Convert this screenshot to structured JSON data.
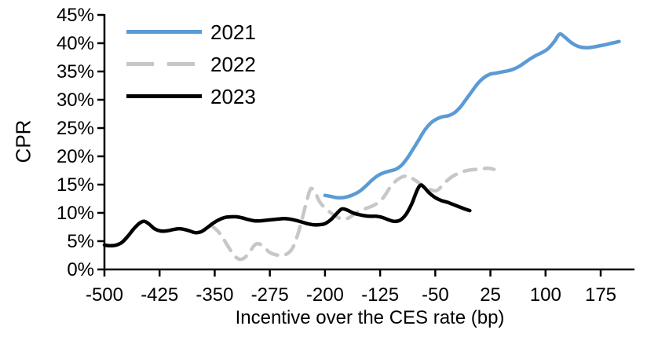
{
  "chart_data": {
    "type": "line",
    "title": "",
    "xlabel": "Incentive over the CES rate (bp)",
    "ylabel": "CPR",
    "grid": false,
    "legend_position": "top-left-inside",
    "xlim": [
      -500,
      221
    ],
    "ylim": [
      0,
      45
    ],
    "x_ticks": [
      {
        "value": -500,
        "label": "-500"
      },
      {
        "value": -425,
        "label": "-425"
      },
      {
        "value": -350,
        "label": "-350"
      },
      {
        "value": -275,
        "label": "-275"
      },
      {
        "value": -200,
        "label": "-200"
      },
      {
        "value": -125,
        "label": "-125"
      },
      {
        "value": -50,
        "label": "-50"
      },
      {
        "value": 25,
        "label": "25"
      },
      {
        "value": 100,
        "label": "100"
      },
      {
        "value": 175,
        "label": "175"
      }
    ],
    "y_ticks": [
      {
        "value": 0,
        "label": "0%"
      },
      {
        "value": 5,
        "label": "5%"
      },
      {
        "value": 10,
        "label": "10%"
      },
      {
        "value": 15,
        "label": "15%"
      },
      {
        "value": 20,
        "label": "20%"
      },
      {
        "value": 25,
        "label": "25%"
      },
      {
        "value": 30,
        "label": "30%"
      },
      {
        "value": 35,
        "label": "35%"
      },
      {
        "value": 40,
        "label": "40%"
      },
      {
        "value": 45,
        "label": "45%"
      }
    ],
    "series": [
      {
        "name": "2021",
        "color": "#5B9BD5",
        "style": "solid",
        "points": [
          [
            -200,
            13.1
          ],
          [
            -192,
            12.9
          ],
          [
            -184,
            12.7
          ],
          [
            -176,
            12.7
          ],
          [
            -168,
            12.9
          ],
          [
            -160,
            13.3
          ],
          [
            -152,
            13.9
          ],
          [
            -144,
            14.8
          ],
          [
            -136,
            15.8
          ],
          [
            -128,
            16.6
          ],
          [
            -120,
            17.1
          ],
          [
            -112,
            17.4
          ],
          [
            -104,
            17.7
          ],
          [
            -96,
            18.4
          ],
          [
            -88,
            19.7
          ],
          [
            -80,
            21.3
          ],
          [
            -72,
            23.0
          ],
          [
            -64,
            24.7
          ],
          [
            -56,
            25.9
          ],
          [
            -48,
            26.6
          ],
          [
            -40,
            27.0
          ],
          [
            -32,
            27.2
          ],
          [
            -24,
            27.7
          ],
          [
            -16,
            28.7
          ],
          [
            -8,
            30.1
          ],
          [
            0,
            31.5
          ],
          [
            8,
            32.9
          ],
          [
            16,
            33.9
          ],
          [
            24,
            34.5
          ],
          [
            32,
            34.7
          ],
          [
            40,
            34.9
          ],
          [
            48,
            35.1
          ],
          [
            56,
            35.4
          ],
          [
            64,
            35.9
          ],
          [
            72,
            36.6
          ],
          [
            80,
            37.3
          ],
          [
            88,
            37.9
          ],
          [
            96,
            38.4
          ],
          [
            104,
            39.1
          ],
          [
            112,
            40.3
          ],
          [
            119,
            41.6
          ],
          [
            126,
            41.1
          ],
          [
            133,
            40.3
          ],
          [
            140,
            39.7
          ],
          [
            148,
            39.3
          ],
          [
            156,
            39.2
          ],
          [
            164,
            39.3
          ],
          [
            172,
            39.5
          ],
          [
            180,
            39.7
          ],
          [
            190,
            40.0
          ],
          [
            200,
            40.3
          ]
        ]
      },
      {
        "name": "2022",
        "color": "#C7C7C7",
        "style": "dashed",
        "points": [
          [
            -355,
            7.8
          ],
          [
            -346,
            6.8
          ],
          [
            -339,
            5.6
          ],
          [
            -331,
            3.9
          ],
          [
            -323,
            2.4
          ],
          [
            -316,
            1.8
          ],
          [
            -309,
            2.1
          ],
          [
            -302,
            3.2
          ],
          [
            -295,
            4.4
          ],
          [
            -289,
            4.5
          ],
          [
            -282,
            3.8
          ],
          [
            -275,
            3.0
          ],
          [
            -267,
            2.6
          ],
          [
            -259,
            2.5
          ],
          [
            -251,
            2.8
          ],
          [
            -244,
            3.8
          ],
          [
            -237,
            6.2
          ],
          [
            -230,
            9.5
          ],
          [
            -224,
            12.5
          ],
          [
            -219,
            14.3
          ],
          [
            -213,
            13.5
          ],
          [
            -207,
            11.9
          ],
          [
            -200,
            10.9
          ],
          [
            -192,
            10.0
          ],
          [
            -184,
            9.3
          ],
          [
            -176,
            8.9
          ],
          [
            -168,
            9.1
          ],
          [
            -160,
            9.8
          ],
          [
            -152,
            10.4
          ],
          [
            -144,
            10.8
          ],
          [
            -136,
            11.2
          ],
          [
            -128,
            11.8
          ],
          [
            -120,
            12.8
          ],
          [
            -112,
            14.4
          ],
          [
            -104,
            15.6
          ],
          [
            -96,
            16.3
          ],
          [
            -88,
            16.5
          ],
          [
            -80,
            16.0
          ],
          [
            -72,
            15.3
          ],
          [
            -64,
            14.6
          ],
          [
            -56,
            14.1
          ],
          [
            -49,
            13.9
          ],
          [
            -42,
            14.6
          ],
          [
            -34,
            15.7
          ],
          [
            -26,
            16.5
          ],
          [
            -18,
            17.0
          ],
          [
            -10,
            17.4
          ],
          [
            -2,
            17.6
          ],
          [
            6,
            17.7
          ],
          [
            14,
            17.8
          ],
          [
            22,
            17.9
          ],
          [
            30,
            17.7
          ]
        ]
      },
      {
        "name": "2023",
        "color": "#000000",
        "style": "solid",
        "points": [
          [
            -500,
            4.3
          ],
          [
            -492,
            4.2
          ],
          [
            -484,
            4.3
          ],
          [
            -476,
            4.8
          ],
          [
            -468,
            5.9
          ],
          [
            -460,
            7.2
          ],
          [
            -452,
            8.2
          ],
          [
            -446,
            8.5
          ],
          [
            -440,
            8.1
          ],
          [
            -432,
            7.2
          ],
          [
            -424,
            6.8
          ],
          [
            -416,
            6.8
          ],
          [
            -408,
            7.0
          ],
          [
            -400,
            7.2
          ],
          [
            -392,
            7.1
          ],
          [
            -384,
            6.8
          ],
          [
            -376,
            6.5
          ],
          [
            -368,
            6.7
          ],
          [
            -360,
            7.4
          ],
          [
            -352,
            8.2
          ],
          [
            -344,
            8.8
          ],
          [
            -336,
            9.2
          ],
          [
            -328,
            9.3
          ],
          [
            -320,
            9.3
          ],
          [
            -312,
            9.1
          ],
          [
            -304,
            8.8
          ],
          [
            -296,
            8.6
          ],
          [
            -288,
            8.6
          ],
          [
            -280,
            8.7
          ],
          [
            -272,
            8.8
          ],
          [
            -264,
            8.9
          ],
          [
            -256,
            9.0
          ],
          [
            -248,
            8.9
          ],
          [
            -240,
            8.7
          ],
          [
            -232,
            8.4
          ],
          [
            -224,
            8.1
          ],
          [
            -216,
            7.9
          ],
          [
            -208,
            7.9
          ],
          [
            -200,
            8.1
          ],
          [
            -192,
            8.8
          ],
          [
            -184,
            9.9
          ],
          [
            -177,
            10.7
          ],
          [
            -170,
            10.5
          ],
          [
            -162,
            10.0
          ],
          [
            -154,
            9.7
          ],
          [
            -146,
            9.5
          ],
          [
            -138,
            9.4
          ],
          [
            -130,
            9.4
          ],
          [
            -122,
            9.2
          ],
          [
            -114,
            8.8
          ],
          [
            -106,
            8.5
          ],
          [
            -98,
            8.7
          ],
          [
            -90,
            9.7
          ],
          [
            -82,
            11.6
          ],
          [
            -75,
            13.9
          ],
          [
            -70,
            14.9
          ],
          [
            -65,
            14.5
          ],
          [
            -58,
            13.5
          ],
          [
            -50,
            12.7
          ],
          [
            -42,
            12.2
          ],
          [
            -34,
            11.9
          ],
          [
            -26,
            11.5
          ],
          [
            -18,
            11.1
          ],
          [
            -10,
            10.7
          ],
          [
            -3,
            10.4
          ]
        ]
      }
    ]
  }
}
